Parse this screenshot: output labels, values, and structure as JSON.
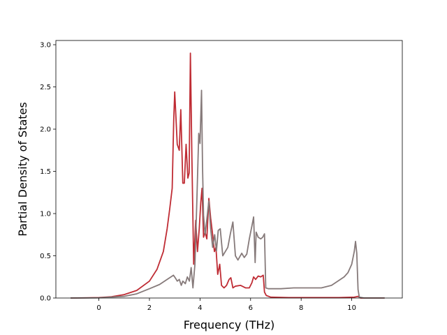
{
  "chart_data": {
    "type": "line",
    "title": "",
    "xlabel": "Frequency (THz)",
    "ylabel": "Partial Density of States",
    "xlim": [
      -1.7,
      12.0
    ],
    "ylim": [
      0,
      3.05
    ],
    "xticks": [
      0,
      2,
      4,
      6,
      8,
      10
    ],
    "yticks": [
      0.0,
      0.5,
      1.0,
      1.5,
      2.0,
      2.5,
      3.0
    ],
    "xtick_labels": [
      "0",
      "2",
      "4",
      "6",
      "8",
      "10"
    ],
    "ytick_labels": [
      "0.0",
      "0.5",
      "1.0",
      "1.5",
      "2.0",
      "2.5",
      "3.0"
    ],
    "grid": false,
    "legend": null,
    "series": [
      {
        "color": "#bf2c34",
        "x": [
          -1.12,
          0.0,
          0.5,
          1.0,
          1.5,
          2.0,
          2.3,
          2.55,
          2.7,
          2.8,
          2.9,
          2.96,
          3.0,
          3.1,
          3.18,
          3.24,
          3.32,
          3.38,
          3.45,
          3.52,
          3.57,
          3.62,
          3.68,
          3.75,
          3.83,
          3.9,
          3.97,
          4.03,
          4.08,
          4.14,
          4.2,
          4.27,
          4.35,
          4.42,
          4.5,
          4.57,
          4.63,
          4.7,
          4.78,
          4.85,
          4.95,
          5.05,
          5.15,
          5.22,
          5.3,
          5.4,
          5.6,
          5.8,
          5.95,
          6.05,
          6.12,
          6.2,
          6.3,
          6.4,
          6.5,
          6.55,
          6.62,
          6.8,
          7.5,
          9.5,
          10.1,
          10.25,
          10.35,
          10.5,
          11.3
        ],
        "y": [
          0.0,
          0.005,
          0.015,
          0.04,
          0.09,
          0.2,
          0.34,
          0.55,
          0.82,
          1.05,
          1.3,
          2.1,
          2.44,
          1.82,
          1.75,
          2.23,
          1.36,
          1.36,
          1.82,
          1.42,
          1.48,
          2.9,
          1.65,
          0.4,
          0.92,
          0.55,
          0.82,
          1.13,
          1.3,
          0.72,
          0.78,
          0.7,
          1.18,
          0.95,
          0.75,
          0.55,
          0.6,
          0.28,
          0.4,
          0.15,
          0.12,
          0.15,
          0.22,
          0.24,
          0.12,
          0.14,
          0.15,
          0.12,
          0.12,
          0.18,
          0.25,
          0.22,
          0.26,
          0.25,
          0.27,
          0.07,
          0.03,
          0.01,
          0.005,
          0.005,
          0.01,
          0.02,
          0.0,
          0.0,
          0.0
        ]
      },
      {
        "color": "#867a7a",
        "x": [
          -1.12,
          0.0,
          1.0,
          1.5,
          2.0,
          2.4,
          2.7,
          2.95,
          3.02,
          3.1,
          3.18,
          3.26,
          3.32,
          3.42,
          3.5,
          3.58,
          3.65,
          3.72,
          3.8,
          3.88,
          3.95,
          4.0,
          4.06,
          4.1,
          4.14,
          4.2,
          4.28,
          4.35,
          4.42,
          4.5,
          4.58,
          4.65,
          4.72,
          4.8,
          4.9,
          5.0,
          5.1,
          5.2,
          5.3,
          5.4,
          5.5,
          5.65,
          5.75,
          5.85,
          5.95,
          6.05,
          6.12,
          6.18,
          6.22,
          6.3,
          6.4,
          6.48,
          6.55,
          6.6,
          6.7,
          7.2,
          7.7,
          8.2,
          8.8,
          9.2,
          9.5,
          9.7,
          9.85,
          10.0,
          10.1,
          10.15,
          10.2,
          10.25,
          10.3,
          10.5,
          11.3
        ],
        "y": [
          0.0,
          0.002,
          0.02,
          0.05,
          0.11,
          0.16,
          0.22,
          0.27,
          0.24,
          0.2,
          0.22,
          0.15,
          0.2,
          0.17,
          0.25,
          0.2,
          0.36,
          0.12,
          0.4,
          1.2,
          1.95,
          1.83,
          2.46,
          1.55,
          0.98,
          0.75,
          0.96,
          1.15,
          0.82,
          0.6,
          0.75,
          0.56,
          0.8,
          0.82,
          0.5,
          0.55,
          0.6,
          0.76,
          0.9,
          0.5,
          0.45,
          0.53,
          0.48,
          0.52,
          0.7,
          0.85,
          0.96,
          0.42,
          0.78,
          0.72,
          0.7,
          0.72,
          0.76,
          0.12,
          0.11,
          0.11,
          0.12,
          0.12,
          0.12,
          0.15,
          0.21,
          0.25,
          0.3,
          0.4,
          0.55,
          0.67,
          0.53,
          0.1,
          0.01,
          0.0,
          0.0
        ]
      }
    ]
  }
}
